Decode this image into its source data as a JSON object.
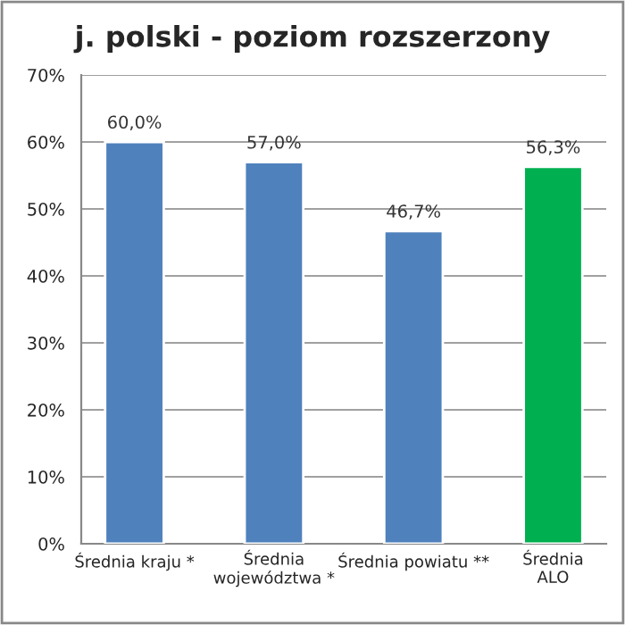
{
  "chart_data": {
    "type": "bar",
    "title": "j. polski - poziom rozszerzony",
    "categories": [
      "Średnia kraju *",
      "Średnia\nwojewództwa *",
      "Średnia powiatu **",
      "Średnia\nALO"
    ],
    "values": [
      60.0,
      57.0,
      46.7,
      56.3
    ],
    "colors": [
      "#4f81bd",
      "#4f81bd",
      "#4f81bd",
      "#00b050"
    ],
    "value_labels": [
      "60,0%",
      "57,0%",
      "46,7%",
      "56,3%"
    ],
    "ylim": [
      0,
      70
    ],
    "yticks": [
      {
        "value": 0,
        "label": "0%"
      },
      {
        "value": 10,
        "label": "10%"
      },
      {
        "value": 20,
        "label": "20%"
      },
      {
        "value": 30,
        "label": "30%"
      },
      {
        "value": 40,
        "label": "40%"
      },
      {
        "value": 50,
        "label": "50%"
      },
      {
        "value": 60,
        "label": "60%"
      },
      {
        "value": 70,
        "label": "70%"
      }
    ],
    "grid": "y",
    "legend": false
  }
}
